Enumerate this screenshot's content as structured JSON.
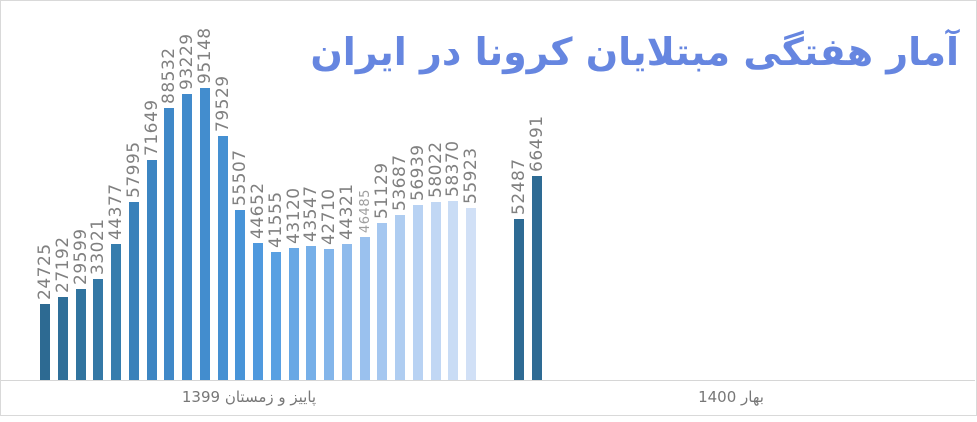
{
  "title": {
    "text": "آمار هفتگی مبتلایان کرونا در ایران",
    "color": "#6686e0"
  },
  "chart_data": {
    "type": "bar",
    "title": "آمار هفتگی مبتلایان کرونا در ایران",
    "xlabel": "",
    "ylabel": "",
    "ylim": [
      0,
      95148
    ],
    "grid": false,
    "legend": "none",
    "value_label_style": "rotated 90deg counterclockwise, gray",
    "axis_line_color": "#d6d6d6",
    "frame_color": "#d9d9d9",
    "label_color": "#808080",
    "groups": [
      {
        "label": "پاییز و زمستان 1399",
        "values": [
          24725,
          27192,
          29599,
          33021,
          44377,
          57995,
          71649,
          88532,
          93229,
          95148,
          79529,
          55507,
          44652,
          41555,
          43120,
          43547,
          42710,
          44321,
          46485,
          51129,
          53687,
          56939,
          58022,
          58370,
          55923
        ],
        "colors": [
          "#2D6A92",
          "#2F6F99",
          "#31749F",
          "#3478A6",
          "#367DAD",
          "#3A81BA",
          "#3C85C2",
          "#3F88C8",
          "#418ACB",
          "#438DCE",
          "#4590D2",
          "#4894D8",
          "#4F99DE",
          "#59A0E2",
          "#68A8E5",
          "#76AFE8",
          "#83B5EA",
          "#8FBBEC",
          "#9AC1EE",
          "#A5C7F0",
          "#AFCDF1",
          "#B8D2F3",
          "#C1D7F4",
          "#C9DCF5",
          "#D1E0F6"
        ],
        "small_value_labels": [
          18
        ]
      },
      {
        "label": "بهار 1400",
        "values": [
          52487,
          66491
        ],
        "colors": [
          "#2E6B94",
          "#2E6B94"
        ],
        "small_value_labels": []
      }
    ]
  }
}
